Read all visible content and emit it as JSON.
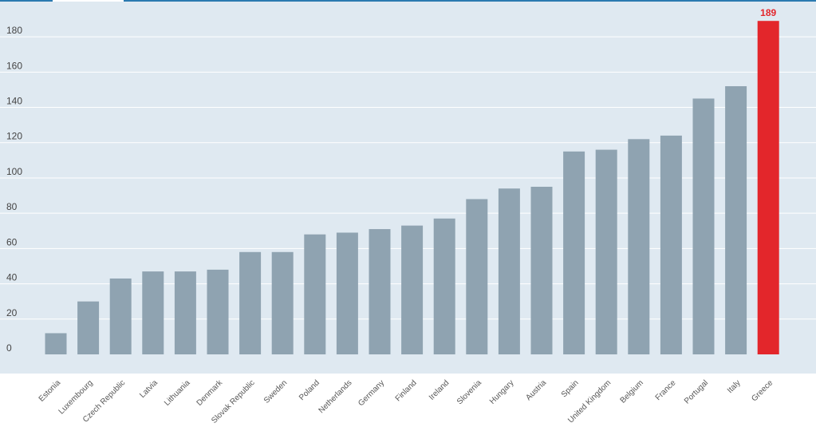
{
  "chart_data": {
    "type": "bar",
    "categories": [
      "Estonia",
      "Luxembourg",
      "Czech Republic",
      "Latvia",
      "Lithuania",
      "Denmark",
      "Slovak Republic",
      "Sweden",
      "Poland",
      "Netherlands",
      "Germany",
      "Finland",
      "Ireland",
      "Slovenia",
      "Hungary",
      "Austria",
      "Spain",
      "United Kingdom",
      "Belgium",
      "France",
      "Portugal",
      "Italy",
      "Greece"
    ],
    "values": [
      12,
      30,
      43,
      47,
      47,
      48,
      58,
      58,
      68,
      69,
      71,
      73,
      77,
      88,
      94,
      95,
      115,
      116,
      122,
      124,
      145,
      152,
      189
    ],
    "highlight_index": 22,
    "data_labels": [
      {
        "index": 22,
        "text": "189"
      }
    ],
    "yticks": [
      0,
      20,
      40,
      60,
      80,
      100,
      120,
      140,
      160,
      180
    ],
    "ylim": [
      0,
      190
    ],
    "grid": true,
    "legend": "none",
    "title": "",
    "xlabel": "",
    "ylabel": ""
  },
  "colors": {
    "plot_background": "#dfe9f1",
    "bar": "#8fa3b1",
    "highlight": "#e3262b",
    "gridline": "#ffffff",
    "top_rule": "#2a7ab0",
    "tick_text": "#444444",
    "category_text": "#555555"
  }
}
